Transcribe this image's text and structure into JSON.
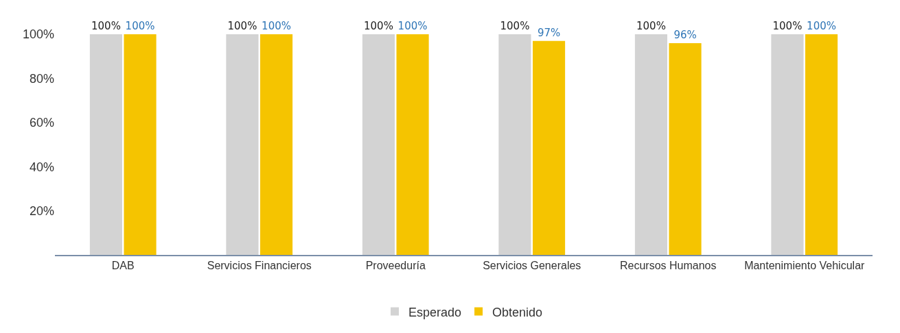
{
  "chart_data": {
    "type": "bar",
    "categories": [
      "DAB",
      "Servicios Financieros",
      "Proveeduría",
      "Servicios Generales",
      "Recursos Humanos",
      "Mantenimiento Vehicular"
    ],
    "series": [
      {
        "name": "Esperado",
        "color": "#d3d3d3",
        "values": [
          100,
          100,
          100,
          100,
          100,
          100
        ],
        "value_labels": [
          "100%",
          "100%",
          "100%",
          "100%",
          "100%",
          "100%"
        ]
      },
      {
        "name": "Obtenido",
        "color": "#f5c400",
        "values": [
          100,
          100,
          100,
          97,
          96,
          100
        ],
        "value_labels": [
          "100%",
          "100%",
          "100%",
          "97%",
          "96%",
          "100%"
        ]
      }
    ],
    "ylim": [
      0,
      100
    ],
    "yticks": [
      {
        "value": 20,
        "label": "20%"
      },
      {
        "value": 40,
        "label": "40%"
      },
      {
        "value": 60,
        "label": "60%"
      },
      {
        "value": 80,
        "label": "80%"
      },
      {
        "value": 100,
        "label": "100%"
      }
    ],
    "grid": false,
    "legend": "bottom"
  }
}
